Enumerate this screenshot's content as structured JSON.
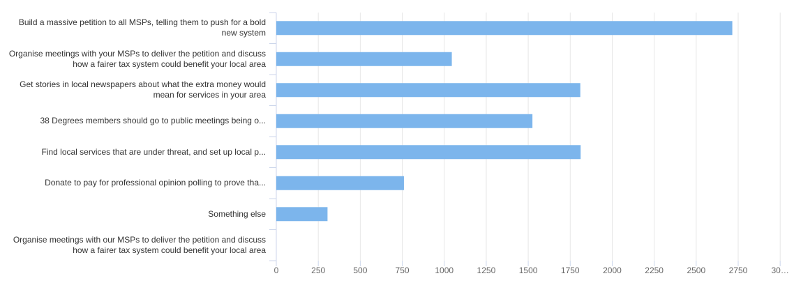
{
  "chart_data": {
    "type": "bar",
    "orientation": "horizontal",
    "categories": [
      "Build a massive petition to all MSPs, telling them to push for a bold new system",
      "Organise meetings with your MSPs to deliver the petition and discuss how a fairer tax system could benefit your local area",
      "Get stories in local newspapers about what the extra money would mean for services in your area",
      "38 Degrees members should go to public meetings being o...",
      "Find local services that are under threat, and set up local p...",
      "Donate to pay for professional opinion polling to prove tha...",
      "Something else",
      "Organise meetings with our MSPs to deliver the petition and discuss how a fairer tax system could benefit your local area"
    ],
    "values": [
      2715,
      1045,
      1810,
      1525,
      1812,
      760,
      305,
      0
    ],
    "xlim": [
      0,
      3000
    ],
    "xticks": [
      "0",
      "250",
      "500",
      "750",
      "1000",
      "1250",
      "1500",
      "1750",
      "2000",
      "2250",
      "2500",
      "2750",
      "30…"
    ],
    "grid": true,
    "bar_color": "#7cb5ec",
    "grid_color": "#e6e6e6",
    "axis_color": "#ccd6eb"
  }
}
